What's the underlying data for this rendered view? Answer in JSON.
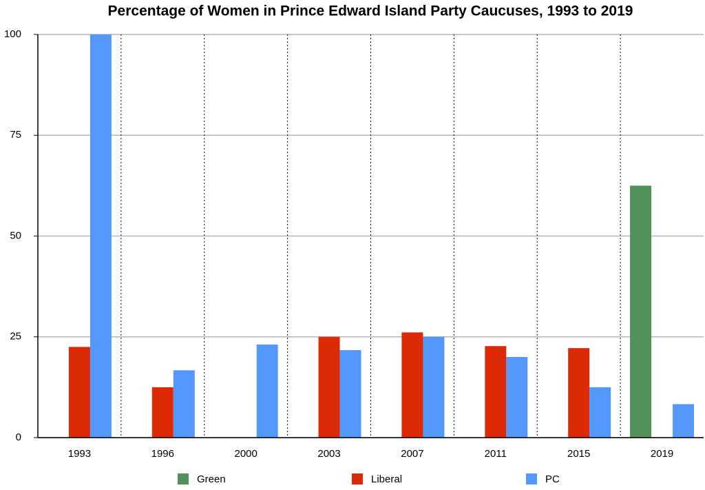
{
  "chart_data": {
    "type": "bar",
    "title": "Percentage of Women in Prince Edward Island Party Caucuses, 1993 to 2019",
    "categories": [
      "1993",
      "1996",
      "2000",
      "2003",
      "2007",
      "2011",
      "2015",
      "2019"
    ],
    "series": [
      {
        "name": "Green",
        "color": "#529159",
        "values": [
          null,
          null,
          null,
          null,
          null,
          null,
          null,
          62.5
        ]
      },
      {
        "name": "Liberal",
        "color": "#dc2a06",
        "values": [
          22.5,
          12.5,
          0,
          25,
          26.1,
          22.7,
          22.2,
          0
        ]
      },
      {
        "name": "PC",
        "color": "#5598fb",
        "values": [
          100,
          16.7,
          23.1,
          21.7,
          25,
          20,
          12.5,
          8.3
        ]
      }
    ],
    "ylim": [
      0,
      100
    ],
    "yticks": [
      0,
      25,
      50,
      75,
      100
    ],
    "grid": true
  }
}
